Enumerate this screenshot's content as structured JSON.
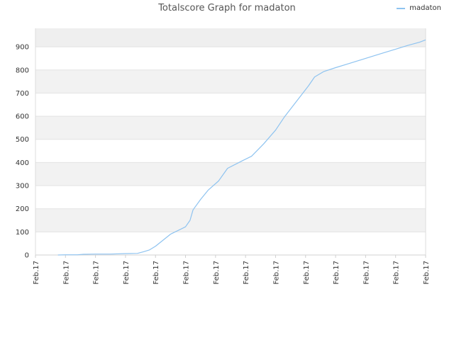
{
  "chart_data": {
    "type": "line",
    "title": "Totalscore Graph for madaton",
    "xlabel": "",
    "ylabel": "",
    "ylim": [
      0,
      980
    ],
    "yticks": [
      0,
      100,
      200,
      300,
      400,
      500,
      600,
      700,
      800,
      900
    ],
    "x_tick_labels": [
      "Feb.17",
      "Feb.17",
      "Feb.17",
      "Feb.17",
      "Feb.17",
      "Feb.17",
      "Feb.17",
      "Feb.17",
      "Feb.17",
      "Feb.17",
      "Feb.17",
      "Feb.17",
      "Feb.17",
      "Feb.17"
    ],
    "grid": true,
    "legend": "top-right",
    "series": [
      {
        "name": "madaton",
        "color": "#8ec3f0",
        "x": [
          0.75,
          1.0,
          1.4,
          1.6,
          2.0,
          2.5,
          3.0,
          3.4,
          3.6,
          3.8,
          4.0,
          4.5,
          5.0,
          5.15,
          5.25,
          5.5,
          5.75,
          6.1,
          6.4,
          6.9,
          7.2,
          7.6,
          8.0,
          8.3,
          8.7,
          9.1,
          9.3,
          9.6,
          10.0,
          10.4,
          10.8,
          11.2,
          11.6,
          12.0,
          12.4,
          12.8,
          13.0
        ],
        "y": [
          0,
          1,
          1,
          3,
          4,
          4,
          6,
          7,
          14,
          22,
          38,
          90,
          122,
          150,
          195,
          240,
          280,
          320,
          375,
          408,
          427,
          480,
          540,
          598,
          665,
          732,
          770,
          793,
          810,
          826,
          842,
          858,
          874,
          890,
          906,
          920,
          930
        ]
      }
    ]
  }
}
